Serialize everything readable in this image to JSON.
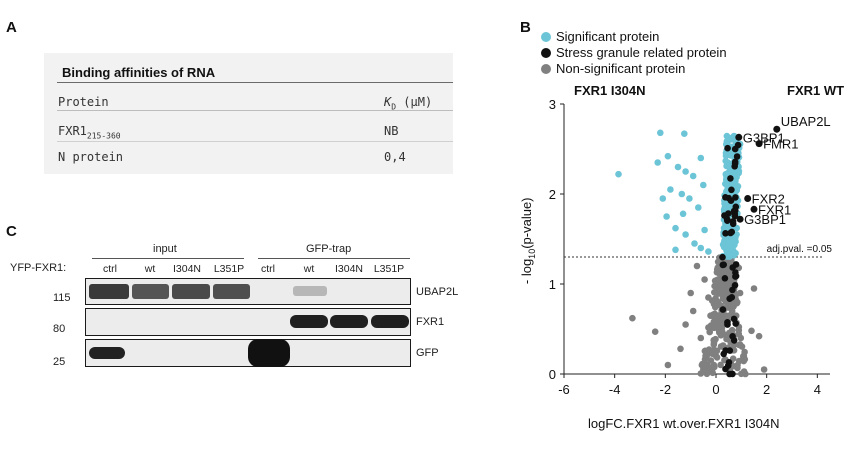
{
  "panel_a": {
    "letter": "A",
    "table_title": "Binding affinities of RNA",
    "col_protein": "Protein",
    "col_kd_symbol": "K",
    "col_kd_sub": "D",
    "col_kd_unit": " (µM)",
    "rows": [
      {
        "protein": "FXR1",
        "subscript": "215-360",
        "kd": "NB"
      },
      {
        "protein": "N protein",
        "subscript": "",
        "kd": "0,4"
      }
    ]
  },
  "panel_c": {
    "letter": "C",
    "row_label": "YFP-FXR1:",
    "group_input": "input",
    "group_trap": "GFP-trap",
    "lanes": [
      "ctrl",
      "wt",
      "I304N",
      "L351P",
      "ctrl",
      "wt",
      "I304N",
      "L351P"
    ],
    "mw_markers": [
      "115",
      "80",
      "25"
    ],
    "blot_labels": [
      "UBAP2L",
      "FXR1",
      "GFP"
    ]
  },
  "panel_b": {
    "letter": "B",
    "legend": [
      {
        "label": "Significant protein",
        "color": "#6cc5d6"
      },
      {
        "label": "Stress granule related protein",
        "color": "#111111"
      },
      {
        "label": "Non-significant protein",
        "color": "#808080"
      }
    ],
    "left_condition": "FXR1 I304N",
    "right_condition": "FXR1 WT",
    "threshold_label": "adj.pval. =0.05"
  },
  "chart_data": {
    "type": "scatter",
    "xlabel": "logFC.FXR1 wt.over.FXR1 I304N",
    "ylabel_pre": "- log",
    "ylabel_sub": "10",
    "ylabel_post": "(p-value)",
    "xlim": [
      -6,
      4.5
    ],
    "ylim": [
      0,
      3
    ],
    "xticks": [
      -6,
      -4,
      -2,
      0,
      2,
      4
    ],
    "yticks": [
      0,
      1,
      2,
      3
    ],
    "threshold_y": 1.3,
    "highlight_points": [
      {
        "x": 2.4,
        "y": 2.72,
        "label": "UBAP2L"
      },
      {
        "x": 1.7,
        "y": 2.56,
        "label": "FMR1"
      },
      {
        "x": 0.9,
        "y": 2.63,
        "label": "G3BP1"
      },
      {
        "x": 1.25,
        "y": 1.95,
        "label": "FXR2"
      },
      {
        "x": 1.5,
        "y": 1.83,
        "label": "FXR1"
      },
      {
        "x": 0.95,
        "y": 1.72,
        "label": "G3BP1"
      }
    ],
    "significant_outliers": [
      {
        "x": -3.85,
        "y": 2.22
      },
      {
        "x": -2.2,
        "y": 2.68
      },
      {
        "x": -1.25,
        "y": 2.67
      },
      {
        "x": -1.9,
        "y": 2.42
      },
      {
        "x": -2.3,
        "y": 2.35
      },
      {
        "x": -1.5,
        "y": 2.3
      },
      {
        "x": -1.2,
        "y": 2.25
      },
      {
        "x": -1.8,
        "y": 2.05
      },
      {
        "x": -2.1,
        "y": 1.95
      },
      {
        "x": -1.35,
        "y": 2.0
      },
      {
        "x": -1.95,
        "y": 1.75
      },
      {
        "x": -1.3,
        "y": 1.78
      },
      {
        "x": -1.6,
        "y": 1.62
      },
      {
        "x": -1.2,
        "y": 1.55
      },
      {
        "x": -0.85,
        "y": 1.45
      },
      {
        "x": -0.6,
        "y": 1.4
      },
      {
        "x": -0.45,
        "y": 1.6
      },
      {
        "x": -0.7,
        "y": 1.85
      },
      {
        "x": -0.5,
        "y": 2.1
      },
      {
        "x": -0.9,
        "y": 2.2
      },
      {
        "x": -1.05,
        "y": 1.95
      },
      {
        "x": -1.6,
        "y": 1.38
      },
      {
        "x": -0.3,
        "y": 1.36
      },
      {
        "x": -0.6,
        "y": 2.4
      }
    ],
    "nonsig_outliers": [
      {
        "x": -3.3,
        "y": 0.62
      },
      {
        "x": -2.4,
        "y": 0.47
      },
      {
        "x": -1.9,
        "y": 0.1
      },
      {
        "x": -1.4,
        "y": 0.28
      },
      {
        "x": -1.2,
        "y": 0.55
      },
      {
        "x": -1.0,
        "y": 0.9
      },
      {
        "x": -0.9,
        "y": 0.7
      },
      {
        "x": -0.75,
        "y": 1.2
      },
      {
        "x": -0.6,
        "y": 0.4
      },
      {
        "x": -0.5,
        "y": 0.05
      },
      {
        "x": -0.45,
        "y": 1.05
      },
      {
        "x": 1.4,
        "y": 0.48
      },
      {
        "x": 1.1,
        "y": 0.2
      },
      {
        "x": 1.9,
        "y": 0.05
      },
      {
        "x": 1.7,
        "y": 0.42
      },
      {
        "x": 0.95,
        "y": 0.9
      },
      {
        "x": 1.5,
        "y": 0.95
      },
      {
        "x": -0.2,
        "y": 0.15
      },
      {
        "x": 0.9,
        "y": 1.18
      },
      {
        "x": -0.3,
        "y": 0.85
      }
    ]
  }
}
